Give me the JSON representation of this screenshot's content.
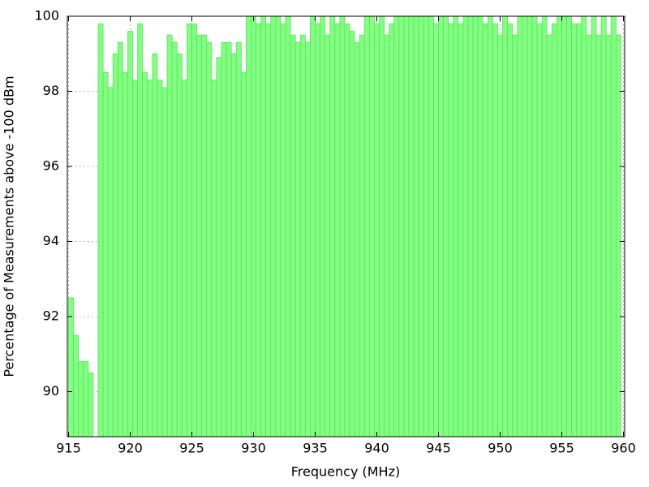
{
  "chart_data": {
    "type": "histogram",
    "xlabel": "Frequency (MHz)",
    "ylabel": "Percentage of Measurements above -100 dBm",
    "color": "#80ff80",
    "edge_color": "#5fdf5f",
    "grid": true,
    "xlim": [
      914.9,
      960.1
    ],
    "ylim": [
      88.8,
      100
    ],
    "xticks": [
      915,
      920,
      925,
      930,
      935,
      940,
      945,
      950,
      955,
      960
    ],
    "yticks": [
      90,
      92,
      94,
      96,
      98,
      100
    ],
    "bins": [
      915,
      915.4,
      915.8,
      916.2,
      916.6,
      917,
      917.4,
      917.8,
      918.2,
      918.6,
      919,
      919.4,
      919.8,
      920.2,
      920.6,
      921,
      921.4,
      921.8,
      922.2,
      922.6,
      923,
      923.4,
      923.8,
      924.2,
      924.6,
      925,
      925.4,
      925.8,
      926.2,
      926.6,
      927,
      927.4,
      927.8,
      928.2,
      928.6,
      929,
      929.4,
      929.8,
      930.2,
      930.6,
      931,
      931.4,
      931.8,
      932.2,
      932.6,
      933,
      933.4,
      933.8,
      934.2,
      934.6,
      935,
      935.4,
      935.8,
      936.2,
      936.6,
      937,
      937.4,
      937.8,
      938.2,
      938.6,
      939,
      939.4,
      939.8,
      940.2,
      940.6,
      941,
      941.4,
      941.8,
      942.2,
      942.6,
      943,
      943.4,
      943.8,
      944.2,
      944.6,
      945,
      945.4,
      945.8,
      946.2,
      946.6,
      947,
      947.4,
      947.8,
      948.2,
      948.6,
      949,
      949.4,
      949.8,
      950.2,
      950.6,
      951,
      951.4,
      951.8,
      952.2,
      952.6,
      953,
      953.4,
      953.8,
      954.2,
      954.6,
      955,
      955.4,
      955.8,
      956.2,
      956.6,
      957,
      957.4,
      957.8,
      958.2,
      958.6,
      959,
      959.4,
      959.8
    ],
    "values": [
      92.5,
      91.5,
      90.8,
      90.8,
      90.5,
      null,
      99.8,
      98.5,
      98.1,
      99.0,
      99.3,
      98.5,
      99.6,
      98.3,
      99.8,
      98.5,
      98.3,
      99.0,
      98.3,
      98.1,
      99.5,
      99.3,
      99.0,
      98.3,
      99.8,
      99.8,
      99.5,
      99.5,
      99.3,
      98.3,
      98.9,
      99.3,
      99.3,
      99.0,
      99.3,
      98.5,
      100,
      100,
      99.8,
      100,
      99.8,
      100,
      100,
      99.8,
      100,
      99.5,
      99.3,
      99.5,
      99.3,
      100,
      99.8,
      100,
      99.5,
      100,
      99.8,
      100,
      99.8,
      99.6,
      99.3,
      99.5,
      100,
      100,
      99.8,
      100,
      99.5,
      99.8,
      100,
      100,
      100,
      100,
      100,
      100,
      100,
      100,
      99.8,
      100,
      100,
      99.8,
      100,
      99.8,
      100,
      100,
      100,
      100,
      99.8,
      100,
      99.8,
      99.5,
      100,
      99.8,
      99.5,
      100,
      100,
      100,
      100,
      99.8,
      100,
      99.5,
      99.8,
      100,
      100,
      100,
      99.8,
      99.8,
      100,
      99.5,
      100,
      99.5,
      100,
      99.5,
      100,
      99.5
    ]
  }
}
